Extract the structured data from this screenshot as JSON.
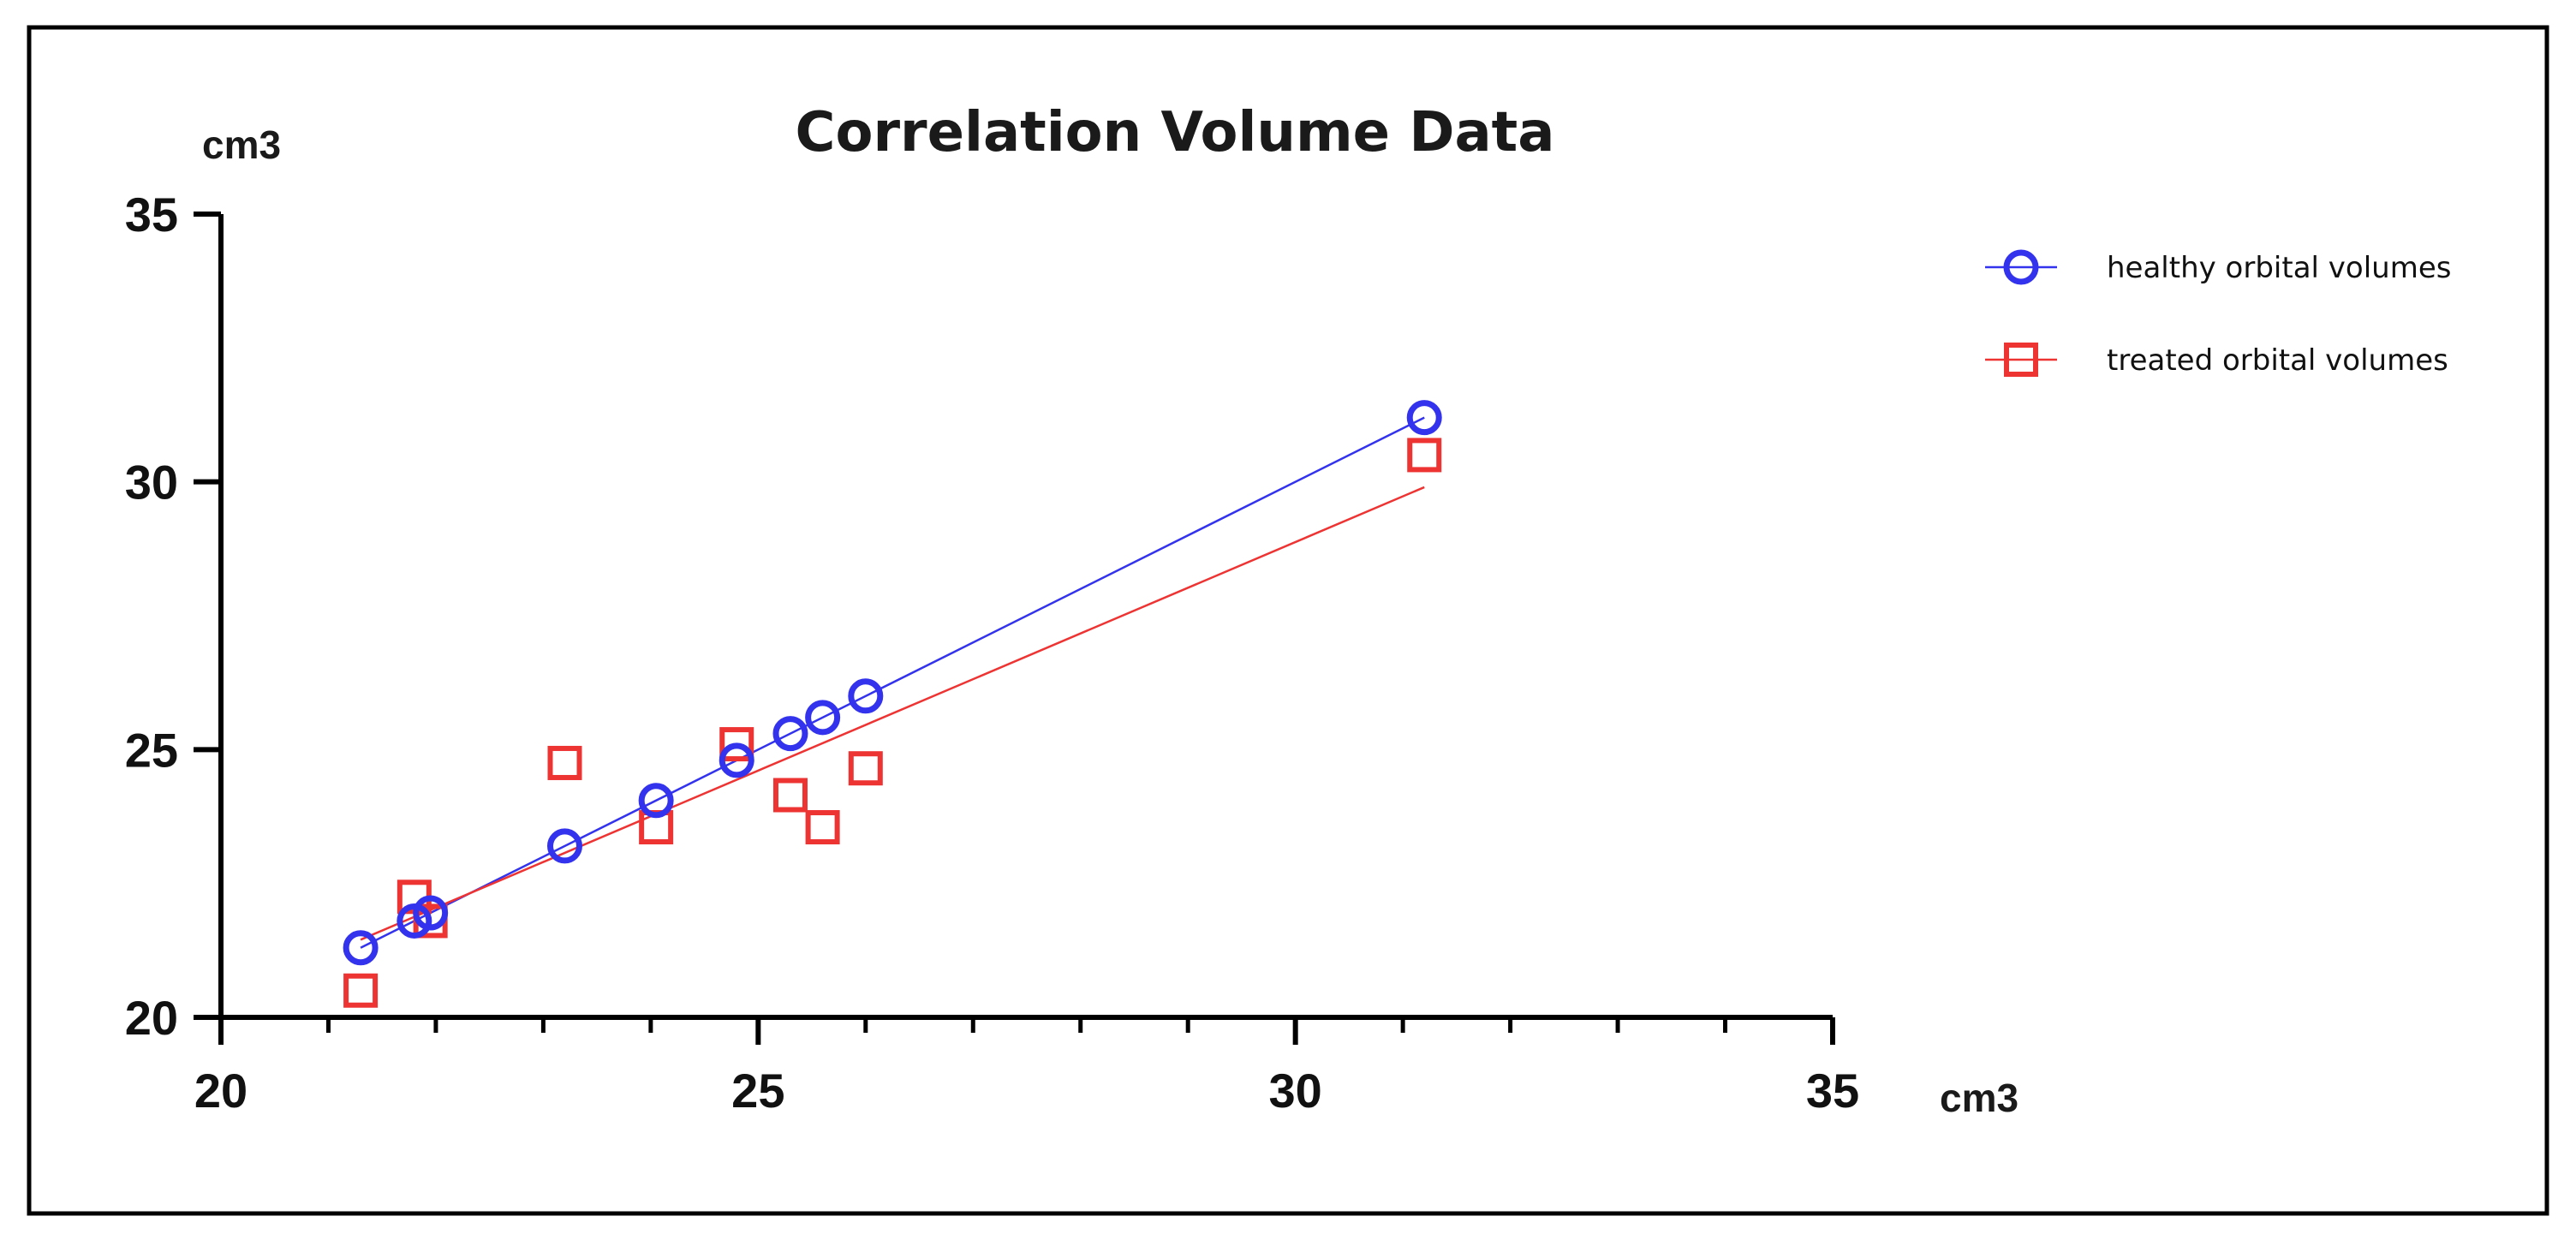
{
  "chart_data": {
    "type": "scatter",
    "title": "Correlation Volume Data",
    "xlabel": "cm3",
    "ylabel": "cm3",
    "xlim": [
      20,
      35
    ],
    "ylim": [
      20,
      35
    ],
    "x_ticks": [
      20,
      25,
      30,
      35
    ],
    "y_ticks": [
      20,
      25,
      30,
      35
    ],
    "grid": false,
    "legend_position": "top-right",
    "series": [
      {
        "name": "healthy orbital volumes",
        "marker": "circle",
        "color": "#3333ee",
        "x": [
          21.3,
          21.8,
          21.95,
          23.2,
          24.05,
          24.8,
          25.3,
          25.6,
          26.0,
          31.2
        ],
        "y": [
          21.3,
          21.8,
          21.95,
          23.2,
          24.05,
          24.8,
          25.3,
          25.6,
          26.0,
          31.2
        ],
        "fit_line": {
          "x": [
            21.3,
            31.2
          ],
          "y": [
            21.3,
            31.2
          ]
        }
      },
      {
        "name": "treated orbital volumes",
        "marker": "square",
        "color": "#ee3333",
        "x": [
          21.3,
          21.8,
          21.95,
          23.2,
          24.05,
          24.8,
          25.3,
          25.6,
          26.0,
          31.2
        ],
        "y": [
          20.5,
          22.25,
          21.8,
          24.75,
          23.55,
          25.1,
          24.15,
          23.55,
          24.65,
          30.5
        ],
        "fit_line": {
          "x": [
            21.3,
            31.2
          ],
          "y": [
            21.45,
            29.9
          ]
        }
      }
    ]
  }
}
